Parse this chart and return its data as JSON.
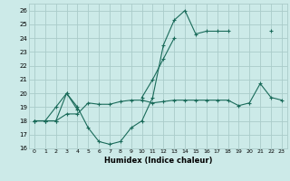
{
  "xlabel": "Humidex (Indice chaleur)",
  "bg_color": "#cceae8",
  "grid_color": "#aaccca",
  "line_color": "#1a6b5a",
  "xlim": [
    -0.5,
    23.5
  ],
  "ylim": [
    16,
    26.5
  ],
  "xticks": [
    0,
    1,
    2,
    3,
    4,
    5,
    6,
    7,
    8,
    9,
    10,
    11,
    12,
    13,
    14,
    15,
    16,
    17,
    18,
    19,
    20,
    21,
    22,
    23
  ],
  "yticks": [
    16,
    17,
    18,
    19,
    20,
    21,
    22,
    23,
    24,
    25,
    26
  ],
  "line1_y": [
    18,
    18,
    18,
    20,
    19,
    17.5,
    16.5,
    16.3,
    16.5,
    17.5,
    18.0,
    19.7,
    23.5,
    25.3,
    26.0,
    24.3,
    24.5,
    24.5,
    24.5,
    null,
    null,
    null,
    null,
    null
  ],
  "line2_y": [
    18,
    18,
    18,
    18.5,
    18.5,
    19.3,
    19.2,
    19.2,
    19.4,
    19.5,
    19.5,
    19.3,
    19.4,
    19.5,
    19.5,
    19.5,
    19.5,
    19.5,
    19.5,
    19.1,
    19.3,
    20.7,
    19.7,
    19.5
  ],
  "line3_y": [
    18,
    18,
    19.0,
    20.0,
    18.8,
    null,
    null,
    null,
    null,
    null,
    19.7,
    21.0,
    22.5,
    24.0,
    null,
    null,
    null,
    null,
    null,
    null,
    null,
    null,
    24.5,
    null
  ]
}
